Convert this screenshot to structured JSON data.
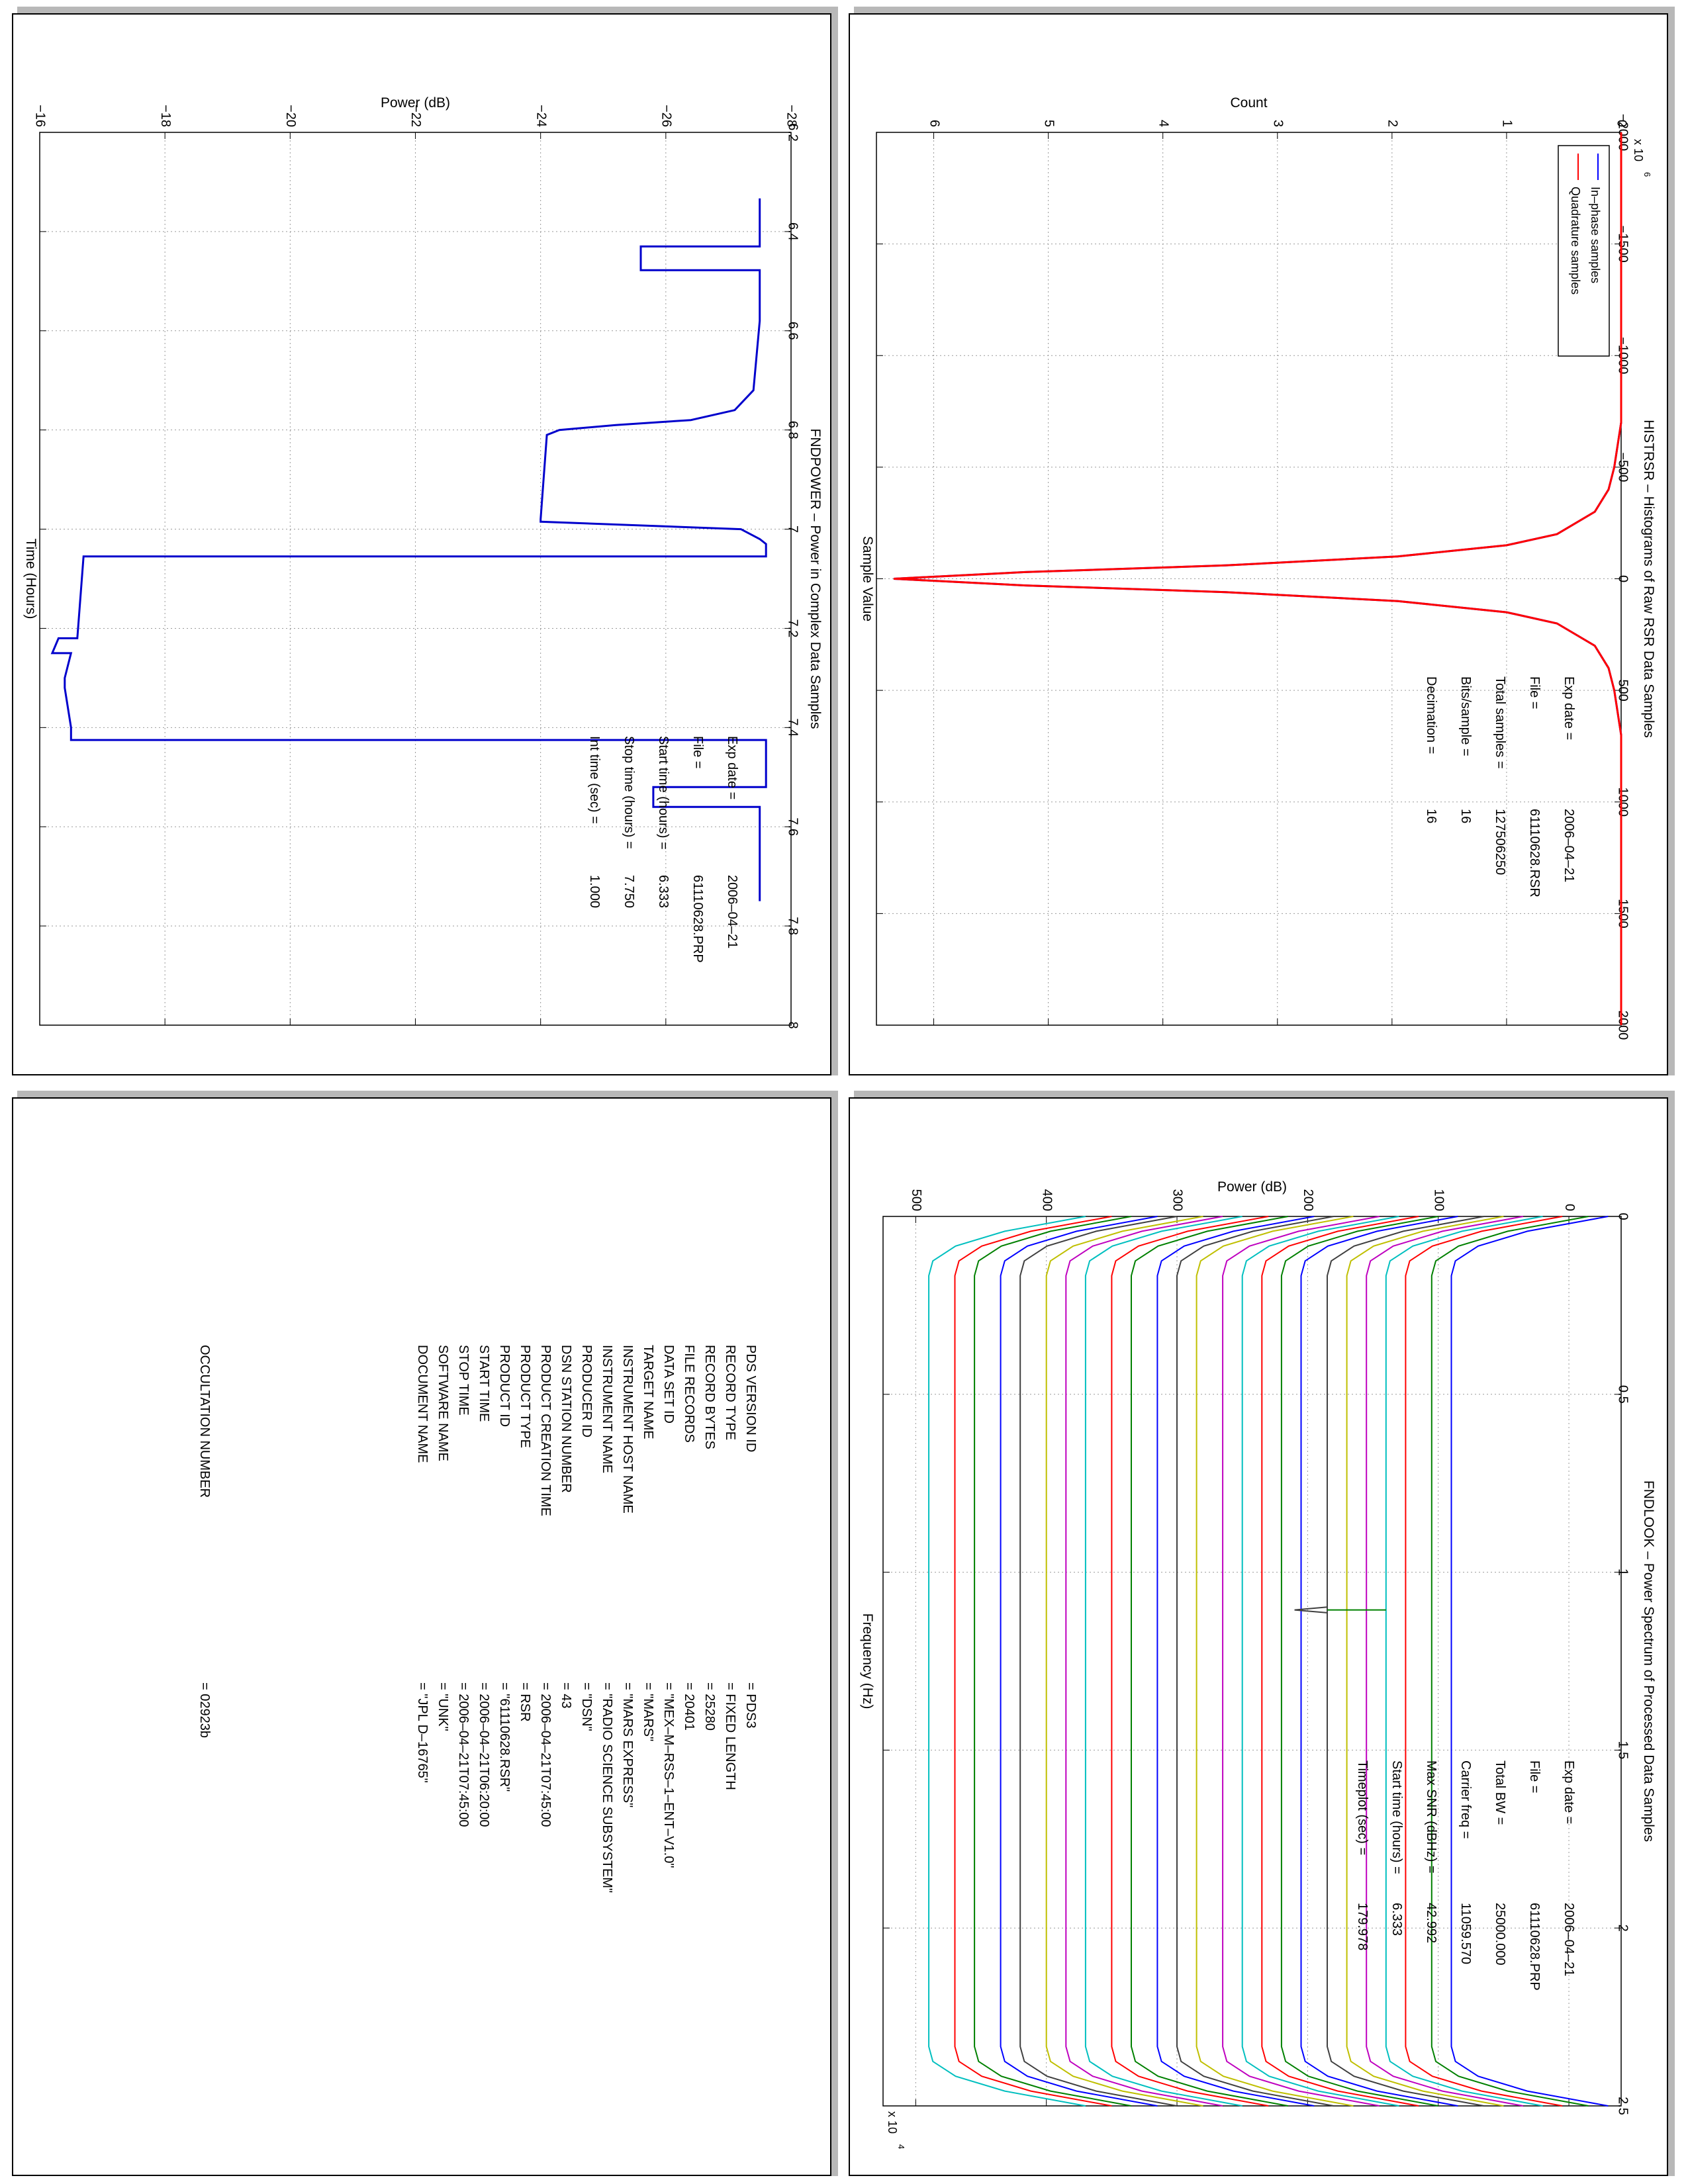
{
  "pages": {
    "power": {
      "title": "FNDPOWER – Power in Complex Data Samples",
      "xlabel": "Time (Hours)",
      "ylabel": "Power (dB)",
      "info": [
        {
          "label": "Exp date =",
          "value": "2006–04–21"
        },
        {
          "label": "File =",
          "value": "61110628.PRP"
        },
        {
          "label": "Start time (hours) =",
          "value": "6.333"
        },
        {
          "label": "Stop time (hours) =",
          "value": "7.750"
        },
        {
          "label": "Int time (sec) =",
          "value": "1.000"
        }
      ]
    },
    "histogram": {
      "title": "HISTRSR – Histograms of Raw RSR Data Samples",
      "xlabel": "Sample Value",
      "ylabel": "Count",
      "exponent_label": "x 10",
      "exponent_power": "6",
      "legend": [
        {
          "label": "In–phase samples",
          "color": "#0000ff"
        },
        {
          "label": "Quadrature samples",
          "color": "#ff0000"
        }
      ],
      "info": [
        {
          "label": "Exp date =",
          "value": "2006–04–21"
        },
        {
          "label": "File =",
          "value": "61110628.RSR"
        },
        {
          "label": "Total samples =",
          "value": "127506250"
        },
        {
          "label": "Bits/sample =",
          "value": "16"
        },
        {
          "label": "Decimation =",
          "value": "16"
        }
      ]
    },
    "spectrum": {
      "title": "FNDLOOK – Power Spectrum of Processed Data Samples",
      "xlabel": "Frequency (Hz)",
      "ylabel": "Power (dB)",
      "exponent_label": "x 10",
      "exponent_power": "4",
      "info": [
        {
          "label": "Exp date =",
          "value": "2006–04–21"
        },
        {
          "label": "File =",
          "value": "61110628.PRP"
        },
        {
          "label": "Total BW =",
          "value": "25000.000"
        },
        {
          "label": "Carrier freq =",
          "value": "11059.570"
        },
        {
          "label": "Max SNR (dBHz) =",
          "value": "42.992"
        },
        {
          "label": "Start time (hours) =",
          "value": "6.333"
        },
        {
          "label": "Timeplot (sec) =",
          "value": "179.978"
        }
      ]
    },
    "label": {
      "rows": [
        {
          "key": "PDS VERSION ID",
          "value": "= PDS3"
        },
        {
          "key": "RECORD TYPE",
          "value": "= FIXED LENGTH"
        },
        {
          "key": "RECORD BYTES",
          "value": "= 25280"
        },
        {
          "key": "FILE RECORDS",
          "value": "= 20401"
        },
        {
          "key": "DATA SET ID",
          "value": "= \"MEX–M–RSS–1–ENT–V1.0\""
        },
        {
          "key": "TARGET NAME",
          "value": "= \"MARS\""
        },
        {
          "key": "INSTRUMENT HOST NAME",
          "value": "= \"MARS EXPRESS\""
        },
        {
          "key": "INSTRUMENT NAME",
          "value": "= \"RADIO SCIENCE SUBSYSTEM\""
        },
        {
          "key": "PRODUCER ID",
          "value": "= \"DSN\""
        },
        {
          "key": "DSN STATION NUMBER",
          "value": "= 43"
        },
        {
          "key": "PRODUCT CREATION TIME",
          "value": "= 2006–04–21T07:45:00"
        },
        {
          "key": "PRODUCT TYPE",
          "value": "= RSR"
        },
        {
          "key": "PRODUCT ID",
          "value": "= \"61110628.RSR\""
        },
        {
          "key": "START TIME",
          "value": "= 2006–04–21T06:20:00"
        },
        {
          "key": "STOP TIME",
          "value": "= 2006–04–21T07:45:00"
        },
        {
          "key": "SOFTWARE NAME",
          "value": "= \"UNK\""
        },
        {
          "key": "DOCUMENT NAME",
          "value": "= \"JPL D–16765\""
        }
      ],
      "extra": {
        "key": "OCCULTATION NUMBER",
        "value": "= 02923b"
      }
    }
  },
  "chart_data": [
    {
      "type": "line",
      "title": "FNDPOWER – Power in Complex Data Samples",
      "xlabel": "Time (Hours)",
      "ylabel": "Power (dB)",
      "xlim": [
        6.2,
        8
      ],
      "ylim": [
        -28,
        -16
      ],
      "xticks": [
        6.2,
        6.4,
        6.6,
        6.8,
        7,
        7.2,
        7.4,
        7.6,
        7.8,
        8
      ],
      "yticks": [
        -28,
        -26,
        -24,
        -22,
        -20,
        -18,
        -16
      ],
      "grid": true,
      "series": [
        {
          "color": "#0000cc",
          "x": [
            6.333,
            6.43,
            6.43,
            6.478,
            6.478,
            6.58,
            6.72,
            6.76,
            6.78,
            6.79,
            6.8,
            6.81,
            6.98,
            6.985,
            7,
            7.02,
            7.03,
            7.055,
            7.055,
            7.22,
            7.22,
            7.25,
            7.25,
            7.3,
            7.32,
            7.4,
            7.42,
            7.425,
            7.425,
            7.45,
            7.52,
            7.52,
            7.56,
            7.56,
            7.64,
            7.75
          ],
          "y": [
            -27.5,
            -27.5,
            -25.6,
            -25.6,
            -27.5,
            -27.5,
            -27.4,
            -27.1,
            -26.4,
            -25.2,
            -24.3,
            -24.1,
            -24.0,
            -24.0,
            -27.2,
            -27.5,
            -27.6,
            -27.6,
            -16.7,
            -16.6,
            -16.3,
            -16.2,
            -16.5,
            -16.4,
            -16.4,
            -16.5,
            -16.5,
            -16.5,
            -27.6,
            -27.6,
            -27.6,
            -25.8,
            -25.8,
            -27.5,
            -27.5,
            -27.5
          ]
        }
      ]
    },
    {
      "type": "line",
      "title": "HISTRSR – Histograms of Raw RSR Data Samples",
      "xlabel": "Sample Value",
      "ylabel": "Count",
      "xlim": [
        -2000,
        2000
      ],
      "ylim": [
        0,
        6500000
      ],
      "xticks": [
        -2000,
        -1500,
        -1000,
        -500,
        0,
        500,
        1000,
        1500,
        2000
      ],
      "yticks": [
        0,
        1000000,
        2000000,
        3000000,
        4000000,
        5000000,
        6000000
      ],
      "ytick_labels": [
        "0",
        "1",
        "2",
        "3",
        "4",
        "5",
        "6"
      ],
      "grid": true,
      "legend_position": "top-right",
      "series": [
        {
          "name": "In–phase samples",
          "color": "#0000ff",
          "x": [
            -2000,
            -700,
            -500,
            -400,
            -300,
            -200,
            -150,
            -100,
            -60,
            -30,
            0,
            30,
            60,
            100,
            150,
            200,
            300,
            400,
            500,
            700,
            2000
          ],
          "y": [
            0,
            0,
            60000,
            110000,
            230000,
            560000,
            1000000,
            1950000,
            3450000,
            5200000,
            6350000,
            5200000,
            3450000,
            1950000,
            1000000,
            560000,
            230000,
            110000,
            60000,
            0,
            0
          ]
        },
        {
          "name": "Quadrature samples",
          "color": "#ff0000",
          "x": [
            -2000,
            -700,
            -500,
            -400,
            -300,
            -200,
            -150,
            -100,
            -60,
            -30,
            0,
            30,
            60,
            100,
            150,
            200,
            300,
            400,
            500,
            700,
            2000
          ],
          "y": [
            0,
            0,
            60000,
            110000,
            230000,
            560000,
            1000000,
            1950000,
            3450000,
            5200000,
            6350000,
            5200000,
            3450000,
            1950000,
            1000000,
            560000,
            230000,
            110000,
            60000,
            0,
            0
          ]
        }
      ]
    },
    {
      "type": "line",
      "title": "FNDLOOK – Power Spectrum of Processed Data Samples",
      "xlabel": "Frequency (Hz)",
      "ylabel": "Power (dB)",
      "xlim": [
        0,
        25000
      ],
      "ylim": [
        -40,
        525
      ],
      "xticks": [
        0,
        5000,
        10000,
        15000,
        20000,
        25000
      ],
      "xtick_labels": [
        "0",
        "0.5",
        "1",
        "1.5",
        "2",
        "2.5"
      ],
      "yticks": [
        0,
        100,
        200,
        300,
        400,
        500
      ],
      "grid": true,
      "trace_count": 25,
      "trace_colors": [
        "#0000ff",
        "#008000",
        "#ff0000",
        "#00bfbf",
        "#bf00bf",
        "#bfbf00",
        "#404040"
      ],
      "trace_baselines": [
        -30,
        -15,
        5,
        20,
        35,
        50,
        65,
        85,
        100,
        115,
        130,
        145,
        165,
        180,
        195,
        215,
        230,
        250,
        265,
        280,
        300,
        315,
        335,
        350,
        370
      ],
      "trace_plateau_offset": 120,
      "peak_frequency": 11059.57,
      "peak_power": 210
    }
  ]
}
